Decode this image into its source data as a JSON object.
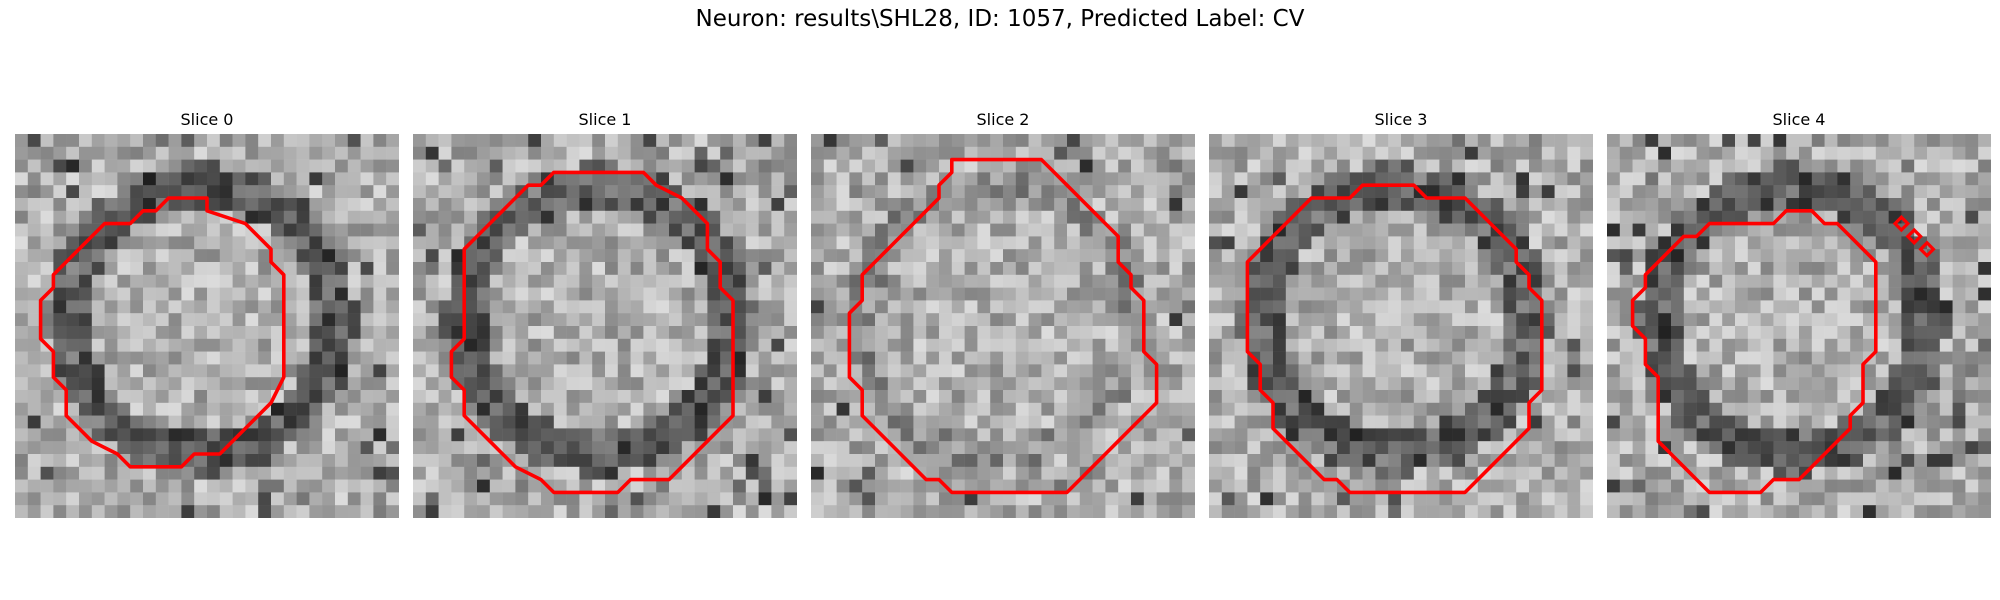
{
  "figure": {
    "title": "Neuron: results\\SHL28, ID: 1057, Predicted Label: CV"
  },
  "panels": [
    {
      "title": "Slice 0",
      "seed": 11,
      "contour": [
        [
          9,
          3
        ],
        [
          12,
          3
        ],
        [
          12,
          4
        ],
        [
          15,
          5
        ],
        [
          16,
          6
        ],
        [
          17,
          7
        ],
        [
          17,
          8
        ],
        [
          18,
          9
        ],
        [
          18,
          17
        ],
        [
          17,
          19
        ],
        [
          16,
          20
        ],
        [
          15,
          21
        ],
        [
          14,
          22
        ],
        [
          13,
          23
        ],
        [
          11,
          23
        ],
        [
          10,
          24
        ],
        [
          6,
          24
        ],
        [
          5,
          23
        ],
        [
          3,
          22
        ],
        [
          2,
          21
        ],
        [
          1,
          20
        ],
        [
          1,
          18
        ],
        [
          0,
          17
        ],
        [
          0,
          15
        ],
        [
          -1,
          14
        ],
        [
          -1,
          11
        ],
        [
          0,
          10
        ],
        [
          0,
          9
        ],
        [
          1,
          8
        ],
        [
          2,
          7
        ],
        [
          3,
          6
        ],
        [
          4,
          5
        ],
        [
          6,
          5
        ],
        [
          7,
          4
        ],
        [
          8,
          4
        ]
      ],
      "dark_ring": true
    },
    {
      "title": "Slice 1",
      "seed": 23,
      "contour": [
        [
          8,
          1
        ],
        [
          15,
          1
        ],
        [
          16,
          2
        ],
        [
          18,
          3
        ],
        [
          19,
          4
        ],
        [
          20,
          5
        ],
        [
          20,
          7
        ],
        [
          21,
          8
        ],
        [
          21,
          10
        ],
        [
          22,
          11
        ],
        [
          22,
          20
        ],
        [
          21,
          21
        ],
        [
          20,
          22
        ],
        [
          19,
          23
        ],
        [
          18,
          24
        ],
        [
          17,
          25
        ],
        [
          14,
          25
        ],
        [
          13,
          26
        ],
        [
          8,
          26
        ],
        [
          7,
          25
        ],
        [
          5,
          24
        ],
        [
          4,
          23
        ],
        [
          3,
          22
        ],
        [
          2,
          21
        ],
        [
          1,
          20
        ],
        [
          1,
          18
        ],
        [
          0,
          17
        ],
        [
          0,
          15
        ],
        [
          1,
          14
        ],
        [
          1,
          7
        ],
        [
          2,
          6
        ],
        [
          3,
          5
        ],
        [
          4,
          4
        ],
        [
          5,
          3
        ],
        [
          6,
          2
        ],
        [
          7,
          2
        ]
      ],
      "dark_ring": true
    },
    {
      "title": "Slice 2",
      "seed": 37,
      "contour": [
        [
          8,
          0
        ],
        [
          15,
          0
        ],
        [
          16,
          1
        ],
        [
          17,
          2
        ],
        [
          18,
          3
        ],
        [
          19,
          4
        ],
        [
          20,
          5
        ],
        [
          21,
          6
        ],
        [
          21,
          8
        ],
        [
          22,
          9
        ],
        [
          22,
          10
        ],
        [
          23,
          11
        ],
        [
          23,
          15
        ],
        [
          24,
          16
        ],
        [
          24,
          19
        ],
        [
          23,
          20
        ],
        [
          22,
          21
        ],
        [
          21,
          22
        ],
        [
          20,
          23
        ],
        [
          19,
          24
        ],
        [
          18,
          25
        ],
        [
          17,
          26
        ],
        [
          8,
          26
        ],
        [
          7,
          25
        ],
        [
          6,
          25
        ],
        [
          5,
          24
        ],
        [
          4,
          23
        ],
        [
          3,
          22
        ],
        [
          2,
          21
        ],
        [
          1,
          20
        ],
        [
          1,
          18
        ],
        [
          0,
          17
        ],
        [
          0,
          12
        ],
        [
          1,
          11
        ],
        [
          1,
          9
        ],
        [
          2,
          8
        ],
        [
          3,
          7
        ],
        [
          4,
          6
        ],
        [
          5,
          5
        ],
        [
          6,
          4
        ],
        [
          7,
          3
        ],
        [
          7,
          2
        ],
        [
          8,
          1
        ]
      ],
      "dark_ring": false
    },
    {
      "title": "Slice 3",
      "seed": 51,
      "contour": [
        [
          9,
          2
        ],
        [
          13,
          2
        ],
        [
          14,
          3
        ],
        [
          17,
          3
        ],
        [
          18,
          4
        ],
        [
          19,
          5
        ],
        [
          20,
          6
        ],
        [
          21,
          7
        ],
        [
          21,
          8
        ],
        [
          22,
          9
        ],
        [
          22,
          10
        ],
        [
          23,
          11
        ],
        [
          23,
          18
        ],
        [
          22,
          19
        ],
        [
          22,
          21
        ],
        [
          21,
          22
        ],
        [
          20,
          23
        ],
        [
          19,
          24
        ],
        [
          18,
          25
        ],
        [
          17,
          26
        ],
        [
          8,
          26
        ],
        [
          7,
          25
        ],
        [
          6,
          25
        ],
        [
          5,
          24
        ],
        [
          4,
          23
        ],
        [
          3,
          22
        ],
        [
          2,
          21
        ],
        [
          2,
          19
        ],
        [
          1,
          18
        ],
        [
          1,
          16
        ],
        [
          0,
          15
        ],
        [
          0,
          8
        ],
        [
          1,
          7
        ],
        [
          2,
          6
        ],
        [
          3,
          5
        ],
        [
          4,
          4
        ],
        [
          5,
          3
        ],
        [
          8,
          3
        ]
      ],
      "dark_ring": true
    },
    {
      "title": "Slice 4",
      "seed": 67,
      "contour": [
        [
          8,
          5
        ],
        [
          10,
          5
        ],
        [
          11,
          4
        ],
        [
          13,
          4
        ],
        [
          14,
          5
        ],
        [
          15,
          5
        ],
        [
          16,
          6
        ],
        [
          17,
          7
        ],
        [
          18,
          8
        ],
        [
          18,
          15
        ],
        [
          17,
          16
        ],
        [
          17,
          19
        ],
        [
          16,
          20
        ],
        [
          16,
          21
        ],
        [
          15,
          22
        ],
        [
          14,
          23
        ],
        [
          13,
          24
        ],
        [
          12,
          25
        ],
        [
          10,
          25
        ],
        [
          9,
          26
        ],
        [
          5,
          26
        ],
        [
          4,
          25
        ],
        [
          3,
          24
        ],
        [
          2,
          23
        ],
        [
          1,
          22
        ],
        [
          1,
          17
        ],
        [
          0,
          16
        ],
        [
          0,
          14
        ],
        [
          -1,
          13
        ],
        [
          -1,
          11
        ],
        [
          0,
          10
        ],
        [
          0,
          9
        ],
        [
          1,
          8
        ],
        [
          2,
          7
        ],
        [
          3,
          6
        ],
        [
          4,
          6
        ],
        [
          5,
          5
        ]
      ],
      "extra_marks": [
        [
          20,
          5
        ],
        [
          21,
          6
        ],
        [
          22,
          7
        ]
      ],
      "dark_ring": true
    }
  ],
  "colors": {
    "contour": "#ff0000"
  }
}
